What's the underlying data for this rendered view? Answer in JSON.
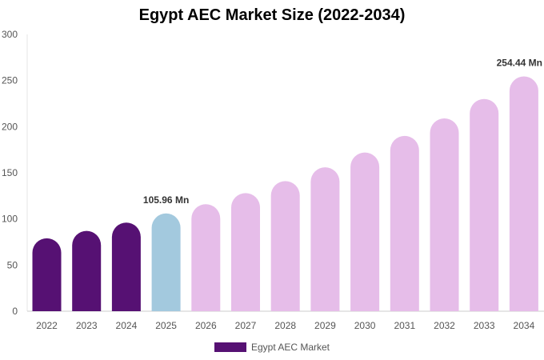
{
  "chart_data": {
    "type": "bar",
    "title": "Egypt AEC Market Size (2022-2034)",
    "xlabel": "",
    "ylabel": "",
    "ylim": [
      0,
      300
    ],
    "yticks": [
      0,
      50,
      100,
      150,
      200,
      250,
      300
    ],
    "categories": [
      "2022",
      "2023",
      "2024",
      "2025",
      "2026",
      "2027",
      "2028",
      "2029",
      "2030",
      "2031",
      "2032",
      "2033",
      "2034"
    ],
    "series": [
      {
        "name": "Egypt AEC Market",
        "values": [
          79,
          87,
          96,
          105.96,
          116,
          128,
          141,
          156,
          172,
          190,
          209,
          230,
          254.44
        ]
      }
    ],
    "bar_colors": [
      "#561173",
      "#561173",
      "#561173",
      "#a3c9de",
      "#e6bde9",
      "#e6bde9",
      "#e6bde9",
      "#e6bde9",
      "#e6bde9",
      "#e6bde9",
      "#e6bde9",
      "#e6bde9",
      "#e6bde9"
    ],
    "annotations": [
      {
        "category": "2025",
        "text": "105.96 Mn"
      },
      {
        "category": "2034",
        "text": "254.44 Mn"
      }
    ],
    "legend": {
      "position": "bottom",
      "color": "#561173"
    },
    "grid": false
  }
}
